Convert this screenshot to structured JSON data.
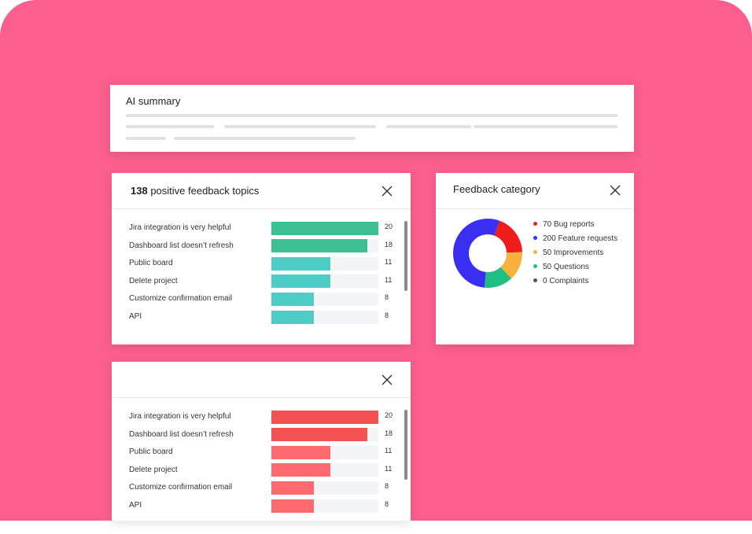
{
  "ai_summary": {
    "title": "AI summary"
  },
  "positive_topics": {
    "count": 138,
    "title": "positive feedback topics",
    "rows": [
      {
        "label": "Jira integration is very helpful",
        "value": 20,
        "color": "#3dbf94"
      },
      {
        "label": "Dashboard list doesn’t refresh",
        "value": 18,
        "color": "#3dbf94"
      },
      {
        "label": "Public board",
        "value": 11,
        "color": "#4ecdc7"
      },
      {
        "label": "Delete project",
        "value": 11,
        "color": "#4ecdc7"
      },
      {
        "label": "Customize confirmation email",
        "value": 8,
        "color": "#4ecdc7"
      },
      {
        "label": "API",
        "value": 8,
        "color": "#4ecdc7"
      }
    ]
  },
  "negative_topics": {
    "rows": [
      {
        "label": "Jira integration is very helpful",
        "value": 20,
        "color": "#f45252"
      },
      {
        "label": "Dashboard list doesn’t refresh",
        "value": 18,
        "color": "#f45252"
      },
      {
        "label": "Public board",
        "value": 11,
        "color": "#fd6b6f"
      },
      {
        "label": "Delete project",
        "value": 11,
        "color": "#fd6b6f"
      },
      {
        "label": "Customize confirmation email",
        "value": 8,
        "color": "#fd6b6f"
      },
      {
        "label": "API",
        "value": 8,
        "color": "#fd6b6f"
      }
    ]
  },
  "feedback_category": {
    "title": "Feedback category",
    "chart": {
      "type": "donut",
      "series": [
        {
          "name": "Bug reports",
          "value": 70,
          "color": "#ef1c1c"
        },
        {
          "name": "Feature requests",
          "value": 200,
          "color": "#3a2ff0"
        },
        {
          "name": "Improvements",
          "value": 50,
          "color": "#f7b23b"
        },
        {
          "name": "Questions",
          "value": 50,
          "color": "#1fbf84"
        },
        {
          "name": "Complaints",
          "value": 0,
          "color": "#555555"
        }
      ]
    }
  }
}
